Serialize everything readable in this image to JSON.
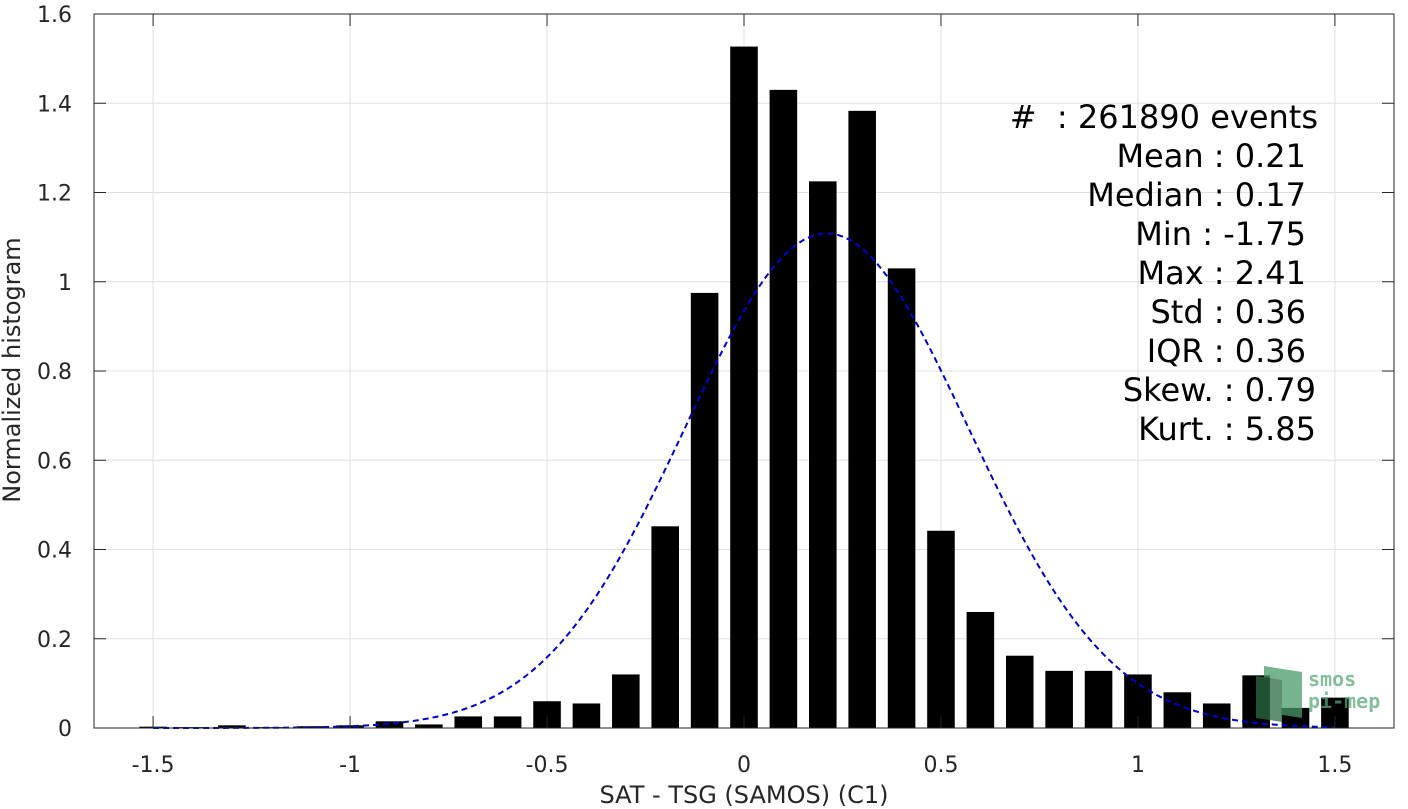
{
  "chart_data": {
    "type": "bar",
    "xlabel": "SAT - TSG (SAMOS) (C1)",
    "ylabel": "Normalized histogram",
    "xlim": [
      -1.65,
      1.65
    ],
    "ylim": [
      0,
      1.6
    ],
    "xticks": [
      -1.5,
      -1,
      -0.5,
      0,
      0.5,
      1,
      1.5
    ],
    "xtick_labels": [
      "-1.5",
      "-1",
      "-0.5",
      "0",
      "0.5",
      "1",
      "1.5"
    ],
    "yticks": [
      0,
      0.2,
      0.4,
      0.6,
      0.8,
      1,
      1.2,
      1.4,
      1.6
    ],
    "ytick_labels": [
      "0",
      "0.2",
      "0.4",
      "0.6",
      "0.8",
      "1",
      "1.2",
      "1.4",
      "1.6"
    ],
    "grid": true,
    "bar_width": 0.07,
    "bar_color": "#000000",
    "x": [
      -1.5,
      -1.4,
      -1.3,
      -1.2,
      -1.1,
      -1.0,
      -0.9,
      -0.8,
      -0.7,
      -0.6,
      -0.5,
      -0.4,
      -0.3,
      -0.2,
      -0.1,
      0.0,
      0.1,
      0.2,
      0.3,
      0.4,
      0.5,
      0.6,
      0.7,
      0.8,
      0.9,
      1.0,
      1.1,
      1.2,
      1.3,
      1.4,
      1.5
    ],
    "values": [
      0.003,
      0.002,
      0.006,
      0.002,
      0.004,
      0.006,
      0.015,
      0.008,
      0.026,
      0.026,
      0.06,
      0.055,
      0.12,
      0.452,
      0.975,
      1.527,
      1.43,
      1.225,
      1.383,
      1.03,
      0.442,
      0.26,
      0.162,
      0.128,
      0.128,
      0.12,
      0.08,
      0.055,
      0.118,
      0.045,
      0.068
    ],
    "fit_curve": {
      "type": "normal",
      "mean": 0.21,
      "std": 0.36,
      "color": "#0000cc",
      "style": "dashed"
    }
  },
  "stats": {
    "events": "#  : 261890 events",
    "mean": "Mean : 0.21",
    "median": "Median : 0.17",
    "min": "Min : -1.75",
    "max": "Max : 2.41",
    "std": "Std : 0.36",
    "iqr": "IQR : 0.36",
    "skew": "Skew. : 0.79",
    "kurt": "Kurt. : 5.85"
  },
  "logo": {
    "line1": "smos",
    "line2": "pi-mep"
  }
}
